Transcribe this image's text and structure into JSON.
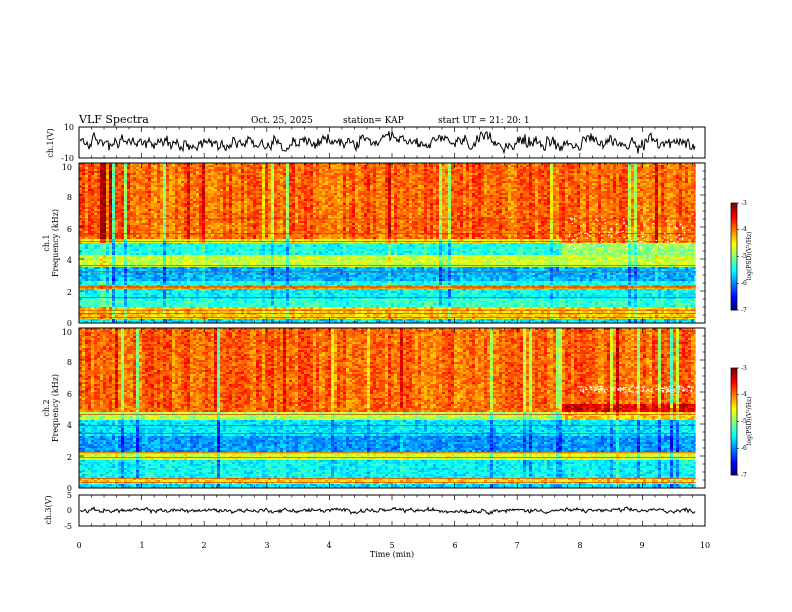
{
  "header": {
    "title": "VLF Spectra",
    "date": "Oct. 25, 2025",
    "station": "station= KAP",
    "start": "start UT =  21: 20: 1"
  },
  "chart_data": [
    {
      "type": "line",
      "name": "ch1-waveform",
      "ylabel": "ch.1(V)",
      "ylim": [
        -10,
        10
      ],
      "yticks": [
        "10",
        "-10"
      ],
      "xlim": [
        0,
        10
      ],
      "data_end_min": 9.85,
      "mean": 0,
      "amplitude": 5,
      "color": "#000000"
    },
    {
      "type": "heatmap",
      "name": "ch1-spectrogram",
      "xlabel": "Time (min)",
      "ylabel": "Frequency (kHz)",
      "channel_label": "ch.1",
      "xlim": [
        0,
        10
      ],
      "data_end_min": 9.85,
      "ylim": [
        0,
        10
      ],
      "yticks": [
        0,
        2,
        4,
        6,
        8,
        10
      ],
      "colorbar": {
        "label": "log(PSD)(V²/Hz)",
        "range": [
          -7,
          -3
        ],
        "ticks": [
          -3,
          -4,
          -5,
          -6,
          -7
        ]
      },
      "profile": [
        {
          "f0": 0,
          "f1": 0.3,
          "v": -5.6
        },
        {
          "f0": 0.3,
          "f1": 1.0,
          "v": -4.3
        },
        {
          "f0": 1.0,
          "f1": 1.5,
          "v": -5.3
        },
        {
          "f0": 1.5,
          "f1": 2.1,
          "v": -5.5
        },
        {
          "f0": 2.1,
          "f1": 2.4,
          "v": -4.2
        },
        {
          "f0": 2.4,
          "f1": 2.6,
          "v": -5.4
        },
        {
          "f0": 2.6,
          "f1": 3.5,
          "v": -5.8
        },
        {
          "f0": 3.5,
          "f1": 4.2,
          "v": -4.7
        },
        {
          "f0": 4.2,
          "f1": 5.0,
          "v": -5.4
        },
        {
          "f0": 5.0,
          "f1": 5.3,
          "v": -4.5
        },
        {
          "f0": 5.3,
          "f1": 10,
          "v": -3.9
        }
      ],
      "lines_khz": [
        0.35,
        0.6,
        0.8,
        1.6,
        2.2,
        2.3,
        3.2,
        3.6,
        5.1,
        5.6,
        6.5
      ],
      "white_features": [
        {
          "t0": 7.8,
          "t1": 9.8,
          "f0": 4.5,
          "f1": 6.6
        }
      ]
    },
    {
      "type": "heatmap",
      "name": "ch2-spectrogram",
      "xlabel": "Time (min)",
      "ylabel": "Frequency (kHz)",
      "channel_label": "ch.2",
      "xlim": [
        0,
        10
      ],
      "data_end_min": 9.85,
      "ylim": [
        0,
        10
      ],
      "yticks": [
        0,
        2,
        4,
        6,
        8,
        10
      ],
      "colorbar": {
        "label": "log(PSD)(V²/Hz)",
        "range": [
          -7,
          -3
        ],
        "ticks": [
          -3,
          -4,
          -5,
          -6,
          -7
        ]
      },
      "profile": [
        {
          "f0": 0,
          "f1": 0.3,
          "v": -5.6
        },
        {
          "f0": 0.3,
          "f1": 0.6,
          "v": -4.3
        },
        {
          "f0": 0.6,
          "f1": 1.8,
          "v": -5.5
        },
        {
          "f0": 1.8,
          "f1": 2.3,
          "v": -4.6
        },
        {
          "f0": 2.3,
          "f1": 3.3,
          "v": -5.9
        },
        {
          "f0": 3.3,
          "f1": 4.2,
          "v": -5.6
        },
        {
          "f0": 4.2,
          "f1": 4.7,
          "v": -4.8
        },
        {
          "f0": 4.7,
          "f1": 10,
          "v": -3.9
        }
      ],
      "lines_khz": [
        0.35,
        0.6,
        1.9,
        2.2,
        3.4,
        3.9,
        4.6
      ],
      "white_features": [
        {
          "t0": 8.0,
          "t1": 9.8,
          "f0": 6.0,
          "f1": 6.4
        }
      ]
    },
    {
      "type": "line",
      "name": "ch3-waveform",
      "ylabel": "ch.3(V)",
      "ylim": [
        -5,
        5
      ],
      "yticks": [
        "5",
        "0",
        "-5"
      ],
      "xlim": [
        0,
        10
      ],
      "xticks": [
        "0",
        "1",
        "2",
        "3",
        "4",
        "5",
        "6",
        "7",
        "8",
        "9",
        "10"
      ],
      "xlabel": "Time (min)",
      "data_end_min": 9.85,
      "mean": 0,
      "amplitude": 0.8,
      "color": "#000000"
    }
  ]
}
